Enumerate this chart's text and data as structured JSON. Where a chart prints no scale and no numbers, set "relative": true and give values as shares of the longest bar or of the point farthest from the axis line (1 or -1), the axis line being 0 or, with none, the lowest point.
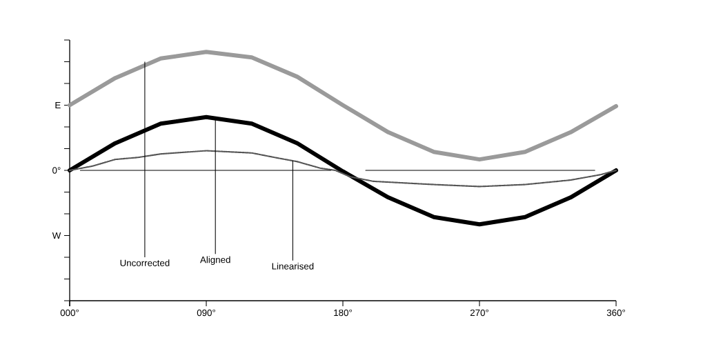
{
  "chart_data": {
    "type": "line",
    "relative": true,
    "xlim": [
      0,
      360
    ],
    "xticks": [
      {
        "value": 0,
        "label": "000°"
      },
      {
        "value": 90,
        "label": "090°"
      },
      {
        "value": 180,
        "label": "180°"
      },
      {
        "value": 270,
        "label": "270°"
      },
      {
        "value": 360,
        "label": "360°"
      }
    ],
    "marker": "none",
    "series": [
      {
        "color": "#9a9a9a",
        "line_style": "solid",
        "x": [
          0,
          30,
          60,
          90,
          120,
          150,
          180,
          210,
          240,
          270,
          300,
          330,
          360
        ],
        "values": [
          0.786,
          0.895,
          0.974,
          1,
          0.978,
          0.9,
          0.786,
          0.677,
          0.598,
          0.568,
          0.598,
          0.677,
          0.782
        ]
      },
      {
        "color": "#000000",
        "line_style": "solid",
        "x": [
          0,
          30,
          60,
          90,
          120,
          150,
          180,
          210,
          240,
          270,
          300,
          330,
          360
        ],
        "values": [
          0.524,
          0.633,
          0.712,
          0.738,
          0.712,
          0.633,
          0.52,
          0.415,
          0.336,
          0.307,
          0.336,
          0.415,
          0.524
        ]
      },
      {
        "color": "#555555",
        "line_style": "dotted",
        "x": [
          0,
          15,
          30,
          45,
          60,
          90,
          120,
          135,
          150,
          165,
          175,
          185,
          200,
          240,
          270,
          300,
          330,
          350,
          360
        ],
        "values": [
          0.524,
          0.541,
          0.568,
          0.576,
          0.59,
          0.603,
          0.594,
          0.576,
          0.559,
          0.533,
          0.524,
          0.498,
          0.48,
          0.467,
          0.459,
          0.467,
          0.485,
          0.507,
          0.524
        ]
      },
      {
        "color": "#000000",
        "line_style": "solid",
        "x": [
          7,
          172,
          184,
          195,
          346
        ],
        "values": [
          0.524,
          0.524,
          null,
          0.524,
          0.524
        ]
      }
    ],
    "annotations": [
      {
        "text": "Uncorrected",
        "x": 49.5,
        "y": 0.961
      },
      {
        "text": "Aligned",
        "x": 96,
        "y": 0.738
      },
      {
        "text": "Linearised",
        "x": 147,
        "y": 0.563
      },
      "E",
      "0°",
      "W"
    ]
  }
}
